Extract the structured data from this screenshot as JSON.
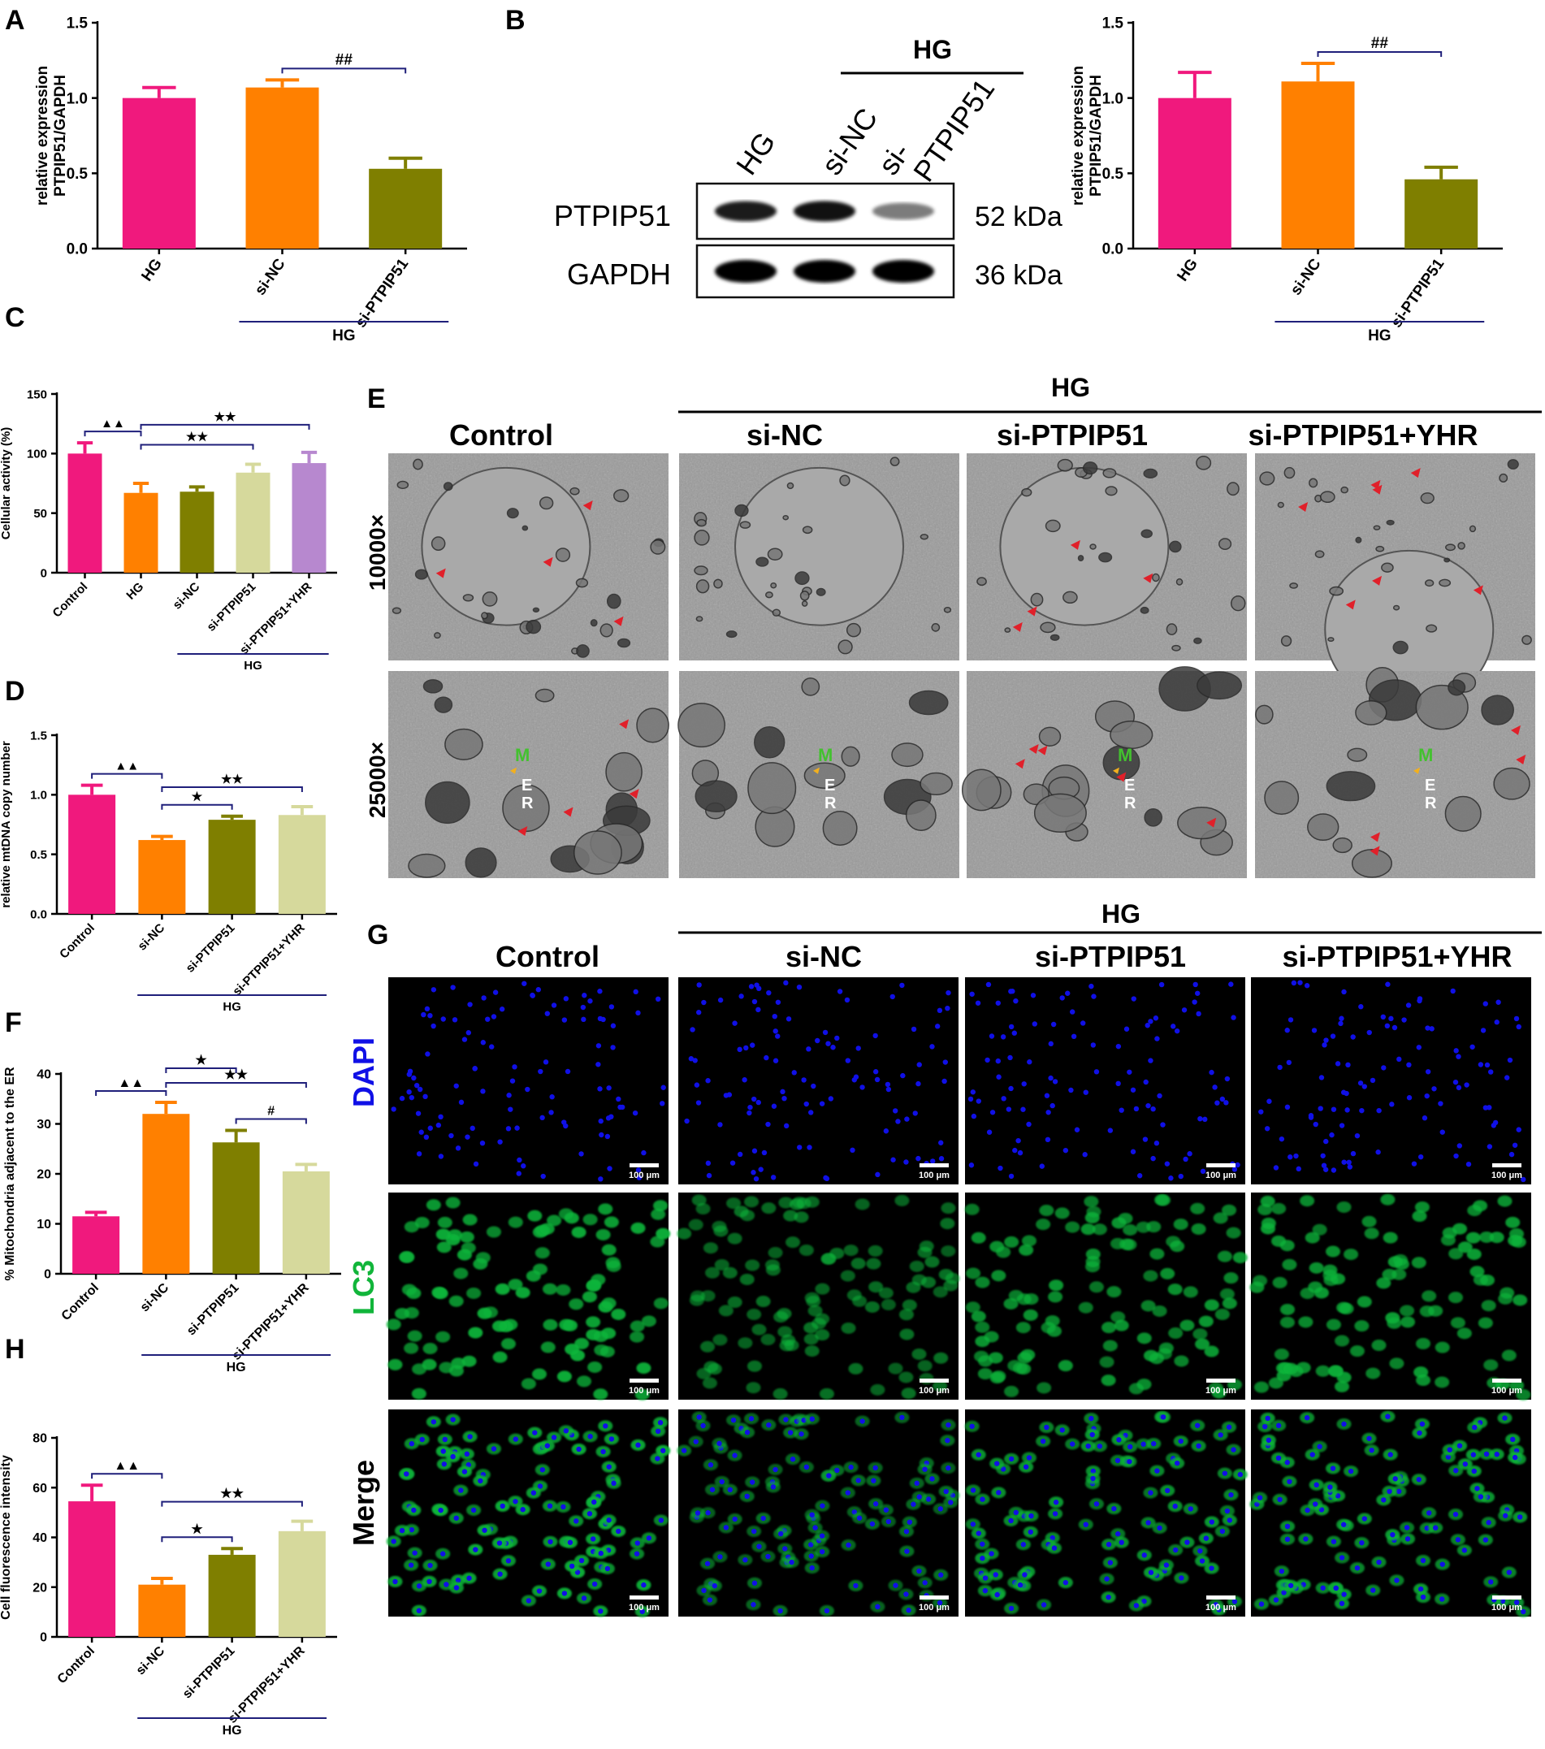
{
  "figure": {
    "panel_letters": [
      "A",
      "B",
      "C",
      "D",
      "E",
      "F",
      "G",
      "H"
    ],
    "group_label": "HG",
    "colors": {
      "pink": "#F0197D",
      "orange": "#FF8000",
      "olive": "#7F7F00",
      "beige": "#D6D99C",
      "lilac": "#B788CF",
      "bracket": "#1F1F7A",
      "em_bg": "#9a9a9a",
      "arrow_red": "#E0202A",
      "arrow_yellow": "#F2B01E",
      "em_label_green": "#43C12F",
      "dapi_blue": "#1010E6",
      "lc3_green": "#11B53A"
    }
  },
  "western_blot": {
    "lanes": [
      "HG",
      "si-NC",
      "si-PTPIP51"
    ],
    "bands": [
      {
        "protein": "PTPIP51",
        "size": "52 kDa",
        "intensity": [
          0.85,
          0.9,
          0.35
        ]
      },
      {
        "protein": "GAPDH",
        "size": "36 kDa",
        "intensity": [
          1.0,
          1.0,
          1.0
        ]
      }
    ]
  },
  "em_panel": {
    "columns": [
      "Control",
      "si-NC",
      "si-PTPIP51",
      "si-PTPIP51+YHR"
    ],
    "rows": [
      "10000×",
      "25000×"
    ],
    "labels": [
      "M",
      "E",
      "R"
    ]
  },
  "fluor_panel": {
    "columns": [
      "Control",
      "si-NC",
      "si-PTPIP51",
      "si-PTPIP51+YHR"
    ],
    "rows": [
      "DAPI",
      "LC3",
      "Merge"
    ],
    "scale_bar": "100 μm",
    "lc3_brightness": [
      1.0,
      0.45,
      0.8,
      0.85
    ]
  },
  "chart_data": [
    {
      "panel": "A",
      "type": "bar",
      "categories": [
        "HG",
        "si-NC",
        "si-PTPIP51"
      ],
      "values": [
        1.0,
        1.07,
        0.53
      ],
      "errors": [
        0.07,
        0.05,
        0.07
      ],
      "title": "",
      "xlabel": "",
      "ylabel": "relative expression PTPIP51/GAPDH",
      "ylim": [
        0,
        1.5
      ],
      "yticks": [
        "0.0",
        "0.5",
        "1.0",
        "1.5"
      ],
      "grid": false,
      "group_bracket": {
        "label": "HG",
        "categories": [
          "si-NC",
          "si-PTPIP51"
        ]
      },
      "significance": [
        {
          "from": "si-NC",
          "to": "si-PTPIP51",
          "label": "##"
        }
      ]
    },
    {
      "panel": "B",
      "type": "bar",
      "categories": [
        "HG",
        "si-NC",
        "si-PTPIP51"
      ],
      "values": [
        1.0,
        1.11,
        0.46
      ],
      "errors": [
        0.17,
        0.12,
        0.08
      ],
      "title": "",
      "xlabel": "",
      "ylabel": "relative expression PTPIP51/GAPDH",
      "ylim": [
        0,
        1.5
      ],
      "yticks": [
        "0.0",
        "0.5",
        "1.0",
        "1.5"
      ],
      "grid": false,
      "group_bracket": {
        "label": "HG",
        "categories": [
          "si-NC",
          "si-PTPIP51"
        ]
      },
      "significance": [
        {
          "from": "si-NC",
          "to": "si-PTPIP51",
          "label": "##"
        }
      ]
    },
    {
      "panel": "C",
      "type": "bar",
      "categories": [
        "Control",
        "HG",
        "si-NC",
        "si-PTPIP51",
        "si-PTPIP51+YHR"
      ],
      "values": [
        100,
        67,
        68,
        84,
        92
      ],
      "errors": [
        9,
        8,
        4,
        7,
        9
      ],
      "title": "",
      "xlabel": "",
      "ylabel": "Cellular activity (%)",
      "ylim": [
        0,
        150
      ],
      "yticks": [
        "0",
        "50",
        "100",
        "150"
      ],
      "grid": false,
      "group_bracket": {
        "label": "HG",
        "categories": [
          "si-NC",
          "si-PTPIP51+YHR"
        ]
      },
      "significance": [
        {
          "from": "Control",
          "to": "HG",
          "label": "▲▲"
        },
        {
          "from": "HG",
          "to": "si-PTPIP51",
          "label": "★★"
        },
        {
          "from": "HG",
          "to": "si-PTPIP51+YHR",
          "label": "★★"
        }
      ]
    },
    {
      "panel": "D",
      "type": "bar",
      "categories": [
        "Control",
        "si-NC",
        "si-PTPIP51",
        "si-PTPIP51+YHR"
      ],
      "values": [
        1.0,
        0.62,
        0.79,
        0.83
      ],
      "errors": [
        0.08,
        0.03,
        0.03,
        0.07
      ],
      "title": "",
      "xlabel": "",
      "ylabel": "relative mtDNA copy number",
      "ylim": [
        0,
        1.5
      ],
      "yticks": [
        "0.0",
        "0.5",
        "1.0",
        "1.5"
      ],
      "grid": false,
      "group_bracket": {
        "label": "HG",
        "categories": [
          "si-NC",
          "si-PTPIP51+YHR"
        ]
      },
      "significance": [
        {
          "from": "Control",
          "to": "si-NC",
          "label": "▲▲"
        },
        {
          "from": "si-NC",
          "to": "si-PTPIP51",
          "label": "★"
        },
        {
          "from": "si-NC",
          "to": "si-PTPIP51+YHR",
          "label": "★★"
        }
      ]
    },
    {
      "panel": "F",
      "type": "bar",
      "categories": [
        "Control",
        "si-NC",
        "si-PTPIP51",
        "si-PTPIP51+YHR"
      ],
      "values": [
        11.5,
        32,
        26.3,
        20.5
      ],
      "errors": [
        0.8,
        2.3,
        2.4,
        1.4
      ],
      "title": "",
      "xlabel": "",
      "ylabel": "% Mitochondria adjacent to the ER",
      "ylim": [
        0,
        40
      ],
      "yticks": [
        "0",
        "10",
        "20",
        "30",
        "40"
      ],
      "grid": false,
      "group_bracket": {
        "label": "HG",
        "categories": [
          "si-NC",
          "si-PTPIP51+YHR"
        ]
      },
      "significance": [
        {
          "from": "Control",
          "to": "si-NC",
          "label": "▲▲"
        },
        {
          "from": "si-NC",
          "to": "si-PTPIP51",
          "label": "★"
        },
        {
          "from": "si-PTPIP51",
          "to": "si-PTPIP51+YHR",
          "label": "#"
        },
        {
          "from": "si-NC",
          "to": "si-PTPIP51+YHR",
          "label": "★★"
        }
      ]
    },
    {
      "panel": "H",
      "type": "bar",
      "categories": [
        "Control",
        "si-NC",
        "si-PTPIP51",
        "si-PTPIP51+YHR"
      ],
      "values": [
        54.5,
        21,
        33,
        42.5
      ],
      "errors": [
        6.5,
        2.5,
        2.5,
        4
      ],
      "title": "",
      "xlabel": "",
      "ylabel": "Cell fluorescence intensity",
      "ylim": [
        0,
        80
      ],
      "yticks": [
        "0",
        "20",
        "40",
        "60",
        "80"
      ],
      "grid": false,
      "group_bracket": {
        "label": "HG",
        "categories": [
          "si-NC",
          "si-PTPIP51+YHR"
        ]
      },
      "significance": [
        {
          "from": "Control",
          "to": "si-NC",
          "label": "▲▲"
        },
        {
          "from": "si-NC",
          "to": "si-PTPIP51",
          "label": "★"
        },
        {
          "from": "si-NC",
          "to": "si-PTPIP51+YHR",
          "label": "★★"
        }
      ]
    }
  ]
}
